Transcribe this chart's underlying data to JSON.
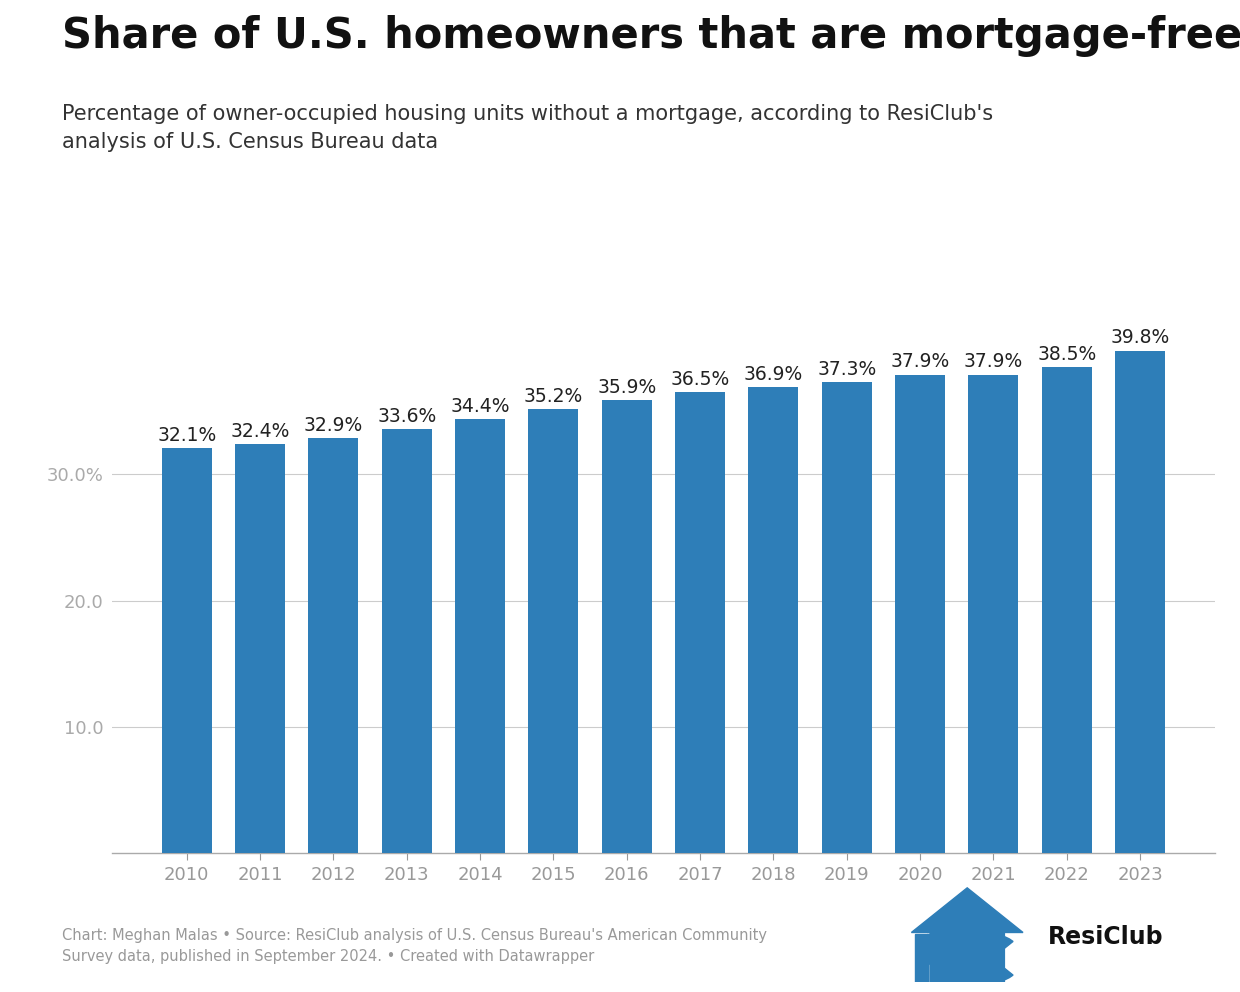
{
  "title": "Share of U.S. homeowners that are mortgage-free",
  "subtitle": "Percentage of owner-occupied housing units without a mortgage, according to ResiClub's\nanalysis of U.S. Census Bureau data",
  "years": [
    2010,
    2011,
    2012,
    2013,
    2014,
    2015,
    2016,
    2017,
    2018,
    2019,
    2020,
    2021,
    2022,
    2023
  ],
  "values": [
    32.1,
    32.4,
    32.9,
    33.6,
    34.4,
    35.2,
    35.9,
    36.5,
    36.9,
    37.3,
    37.9,
    37.9,
    38.5,
    39.8
  ],
  "bar_color": "#2e7eb8",
  "yticks": [
    10.0,
    20.0,
    30.0
  ],
  "ytick_labels": [
    "10.0",
    "20.0",
    "30.0%"
  ],
  "ylim": [
    0,
    44
  ],
  "ylabel_color": "#aaaaaa",
  "grid_color": "#cccccc",
  "footer_text": "Chart: Meghan Malas • Source: ResiClub analysis of U.S. Census Bureau's American Community\nSurvey data, published in September 2024. • Created with Datawrapper",
  "footer_color": "#999999",
  "bg_color": "#ffffff",
  "bar_label_fontsize": 13.5,
  "title_fontsize": 30,
  "subtitle_fontsize": 15,
  "axis_label_fontsize": 13,
  "bar_label_color": "#222222",
  "xtick_color": "#555555"
}
